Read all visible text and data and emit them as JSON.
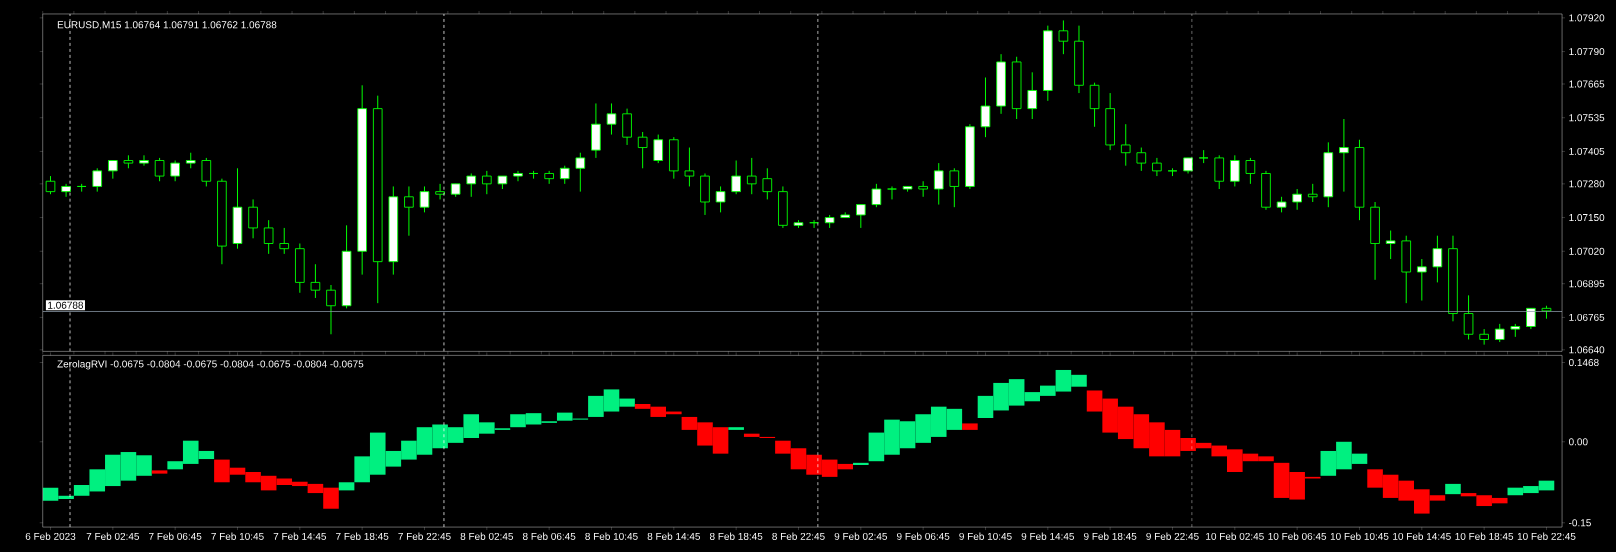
{
  "chart_data": [
    {
      "type": "candlestick",
      "title": "EURUSD,M15  1.06764 1.06791 1.06762 1.06788",
      "color": "#00ff00",
      "x": [
        "2023-02-06T22:45",
        "2023-02-06T23:45",
        "2023-02-07T00:45",
        "2023-02-07T01:45",
        "2023-02-07T02:45",
        "2023-02-07T03:45",
        "2023-02-07T04:45",
        "2023-02-07T05:45",
        "2023-02-07T06:45",
        "2023-02-07T07:45",
        "2023-02-07T08:45",
        "2023-02-07T09:45",
        "2023-02-07T10:45",
        "2023-02-07T11:45",
        "2023-02-07T12:45",
        "2023-02-07T13:45",
        "2023-02-07T14:45",
        "2023-02-07T15:45",
        "2023-02-07T16:45",
        "2023-02-07T17:45",
        "2023-02-07T18:45",
        "2023-02-07T19:45",
        "2023-02-07T20:45",
        "2023-02-07T21:45",
        "2023-02-07T22:45",
        "2023-02-07T23:45",
        "2023-02-08T00:45",
        "2023-02-08T01:45",
        "2023-02-08T02:45",
        "2023-02-08T03:45",
        "2023-02-08T04:45",
        "2023-02-08T05:45",
        "2023-02-08T06:45",
        "2023-02-08T07:45",
        "2023-02-08T08:45",
        "2023-02-08T09:45",
        "2023-02-08T10:45",
        "2023-02-08T11:45",
        "2023-02-08T12:45",
        "2023-02-08T13:45",
        "2023-02-08T14:45",
        "2023-02-08T15:45",
        "2023-02-08T16:45",
        "2023-02-08T17:45",
        "2023-02-08T18:45",
        "2023-02-08T19:45",
        "2023-02-08T20:45",
        "2023-02-08T21:45",
        "2023-02-08T22:45",
        "2023-02-08T23:45",
        "2023-02-09T00:45",
        "2023-02-09T01:45",
        "2023-02-09T02:45",
        "2023-02-09T03:45",
        "2023-02-09T04:45",
        "2023-02-09T05:45",
        "2023-02-09T06:45",
        "2023-02-09T07:45",
        "2023-02-09T08:45",
        "2023-02-09T09:45",
        "2023-02-09T10:45",
        "2023-02-09T11:45",
        "2023-02-09T12:45",
        "2023-02-09T13:45",
        "2023-02-09T14:45",
        "2023-02-09T15:45",
        "2023-02-09T16:45",
        "2023-02-09T17:45",
        "2023-02-09T18:45",
        "2023-02-09T19:45",
        "2023-02-09T20:45",
        "2023-02-09T21:45",
        "2023-02-09T22:45",
        "2023-02-09T23:45",
        "2023-02-10T00:45",
        "2023-02-10T01:45",
        "2023-02-10T02:45",
        "2023-02-10T03:45",
        "2023-02-10T04:45",
        "2023-02-10T05:45",
        "2023-02-10T06:45",
        "2023-02-10T07:45",
        "2023-02-10T08:45",
        "2023-02-10T09:45",
        "2023-02-10T10:45",
        "2023-02-10T11:45",
        "2023-02-10T12:45",
        "2023-02-10T13:45",
        "2023-02-10T14:45",
        "2023-02-10T15:45",
        "2023-02-10T16:45",
        "2023-02-10T17:45",
        "2023-02-10T18:45",
        "2023-02-10T19:45",
        "2023-02-10T20:45",
        "2023-02-10T21:45",
        "2023-02-10T22:45"
      ],
      "ohlc": [
        [
          1.0729,
          1.0731,
          1.0724,
          1.0725
        ],
        [
          1.0725,
          1.0728,
          1.0723,
          1.0727
        ],
        [
          1.0727,
          1.0728,
          1.0725,
          1.0727
        ],
        [
          1.0727,
          1.0734,
          1.0725,
          1.0733
        ],
        [
          1.0733,
          1.0737,
          1.073,
          1.0737
        ],
        [
          1.0737,
          1.0739,
          1.0734,
          1.0736
        ],
        [
          1.0736,
          1.0739,
          1.0735,
          1.0737
        ],
        [
          1.0737,
          1.0738,
          1.0729,
          1.0731
        ],
        [
          1.0731,
          1.0737,
          1.0729,
          1.0736
        ],
        [
          1.0736,
          1.074,
          1.0734,
          1.0737
        ],
        [
          1.0737,
          1.0738,
          1.0727,
          1.0729
        ],
        [
          1.0729,
          1.073,
          1.0697,
          1.0704
        ],
        [
          1.0705,
          1.0734,
          1.0703,
          1.0719
        ],
        [
          1.0719,
          1.0722,
          1.0707,
          1.0711
        ],
        [
          1.0711,
          1.0714,
          1.0701,
          1.0705
        ],
        [
          1.0705,
          1.0711,
          1.0701,
          1.0703
        ],
        [
          1.0703,
          1.0705,
          1.0686,
          1.069
        ],
        [
          1.069,
          1.0697,
          1.0684,
          1.0687
        ],
        [
          1.0687,
          1.0689,
          1.067,
          1.0681
        ],
        [
          1.0681,
          1.0712,
          1.068,
          1.0702
        ],
        [
          1.0702,
          1.0766,
          1.0693,
          1.0757
        ],
        [
          1.0757,
          1.0762,
          1.0682,
          1.0698
        ],
        [
          1.0698,
          1.0727,
          1.0693,
          1.0723
        ],
        [
          1.0723,
          1.0727,
          1.0708,
          1.0719
        ],
        [
          1.0719,
          1.0727,
          1.0717,
          1.0725
        ],
        [
          1.0725,
          1.0728,
          1.0722,
          1.0724
        ],
        [
          1.0724,
          1.0728,
          1.0723,
          1.0728
        ],
        [
          1.0728,
          1.0732,
          1.0723,
          1.0731
        ],
        [
          1.0731,
          1.0733,
          1.0724,
          1.0728
        ],
        [
          1.0728,
          1.0731,
          1.0726,
          1.0731
        ],
        [
          1.0731,
          1.0733,
          1.0729,
          1.0732
        ],
        [
          1.0732,
          1.0733,
          1.073,
          1.0732
        ],
        [
          1.0732,
          1.0733,
          1.0728,
          1.073
        ],
        [
          1.073,
          1.0735,
          1.0728,
          1.0734
        ],
        [
          1.0734,
          1.074,
          1.0725,
          1.0738
        ],
        [
          1.0741,
          1.0759,
          1.0738,
          1.0751
        ],
        [
          1.0751,
          1.0759,
          1.0747,
          1.0755
        ],
        [
          1.0755,
          1.0757,
          1.0743,
          1.0746
        ],
        [
          1.0746,
          1.0748,
          1.0734,
          1.0742
        ],
        [
          1.0737,
          1.0747,
          1.0736,
          1.0745
        ],
        [
          1.0745,
          1.0746,
          1.073,
          1.0733
        ],
        [
          1.0733,
          1.0742,
          1.0727,
          1.0731
        ],
        [
          1.0731,
          1.0732,
          1.0716,
          1.0721
        ],
        [
          1.0721,
          1.0727,
          1.0717,
          1.0725
        ],
        [
          1.0725,
          1.0737,
          1.0724,
          1.0731
        ],
        [
          1.0731,
          1.0738,
          1.0724,
          1.0728
        ],
        [
          1.073,
          1.0734,
          1.0722,
          1.0725
        ],
        [
          1.0725,
          1.0727,
          1.0711,
          1.0712
        ],
        [
          1.0712,
          1.0714,
          1.0711,
          1.0713
        ],
        [
          1.0713,
          1.0714,
          1.0711,
          1.0713
        ],
        [
          1.0713,
          1.0716,
          1.0711,
          1.0715
        ],
        [
          1.0715,
          1.0717,
          1.0715,
          1.0716
        ],
        [
          1.0716,
          1.072,
          1.0711,
          1.072
        ],
        [
          1.072,
          1.0728,
          1.0719,
          1.0726
        ],
        [
          1.0726,
          1.0727,
          1.0722,
          1.0726
        ],
        [
          1.0726,
          1.0727,
          1.0725,
          1.0727
        ],
        [
          1.0727,
          1.0729,
          1.0723,
          1.0726
        ],
        [
          1.0726,
          1.0736,
          1.072,
          1.0733
        ],
        [
          1.0733,
          1.0734,
          1.0719,
          1.0727
        ],
        [
          1.0727,
          1.0751,
          1.0726,
          1.075
        ],
        [
          1.075,
          1.0769,
          1.0746,
          1.0758
        ],
        [
          1.0758,
          1.0778,
          1.0755,
          1.0775
        ],
        [
          1.0775,
          1.0777,
          1.0753,
          1.0757
        ],
        [
          1.0757,
          1.0771,
          1.0753,
          1.0764
        ],
        [
          1.0764,
          1.0789,
          1.076,
          1.0787
        ],
        [
          1.0787,
          1.0791,
          1.0778,
          1.0783
        ],
        [
          1.0783,
          1.0789,
          1.0763,
          1.0766
        ],
        [
          1.0766,
          1.0767,
          1.075,
          1.0757
        ],
        [
          1.0757,
          1.0763,
          1.0741,
          1.0743
        ],
        [
          1.0743,
          1.0751,
          1.0735,
          1.074
        ],
        [
          1.074,
          1.0742,
          1.0733,
          1.0736
        ],
        [
          1.0736,
          1.0738,
          1.0731,
          1.0733
        ],
        [
          1.0733,
          1.0734,
          1.0731,
          1.0733
        ],
        [
          1.0733,
          1.0738,
          1.0732,
          1.0738
        ],
        [
          1.0738,
          1.0741,
          1.0736,
          1.0738
        ],
        [
          1.0738,
          1.0739,
          1.0726,
          1.0729
        ],
        [
          1.0729,
          1.0739,
          1.0727,
          1.0737
        ],
        [
          1.0737,
          1.0738,
          1.0728,
          1.0732
        ],
        [
          1.0732,
          1.0733,
          1.0718,
          1.0719
        ],
        [
          1.0719,
          1.0723,
          1.0717,
          1.0721
        ],
        [
          1.0721,
          1.0726,
          1.0718,
          1.0724
        ],
        [
          1.0724,
          1.0728,
          1.0721,
          1.0723
        ],
        [
          1.0723,
          1.0744,
          1.0719,
          1.074
        ],
        [
          1.074,
          1.0753,
          1.0725,
          1.0742
        ],
        [
          1.0742,
          1.0745,
          1.0714,
          1.0719
        ],
        [
          1.0719,
          1.0721,
          1.0691,
          1.0705
        ],
        [
          1.0705,
          1.071,
          1.0699,
          1.0706
        ],
        [
          1.0706,
          1.0708,
          1.0682,
          1.0694
        ],
        [
          1.0694,
          1.0699,
          1.0683,
          1.0696
        ],
        [
          1.0696,
          1.0708,
          1.069,
          1.0703
        ],
        [
          1.0703,
          1.0708,
          1.0675,
          1.0678
        ],
        [
          1.0678,
          1.0685,
          1.0668,
          1.067
        ],
        [
          1.067,
          1.0672,
          1.0666,
          1.0668
        ],
        [
          1.0668,
          1.0674,
          1.0667,
          1.0672
        ],
        [
          1.0672,
          1.0674,
          1.0669,
          1.0673
        ],
        [
          1.0673,
          1.068,
          1.0672,
          1.068
        ],
        [
          1.068,
          1.0681,
          1.0676,
          1.0679
        ]
      ],
      "xlim": [
        "2023-02-06T22:15",
        "2023-02-10T23:45"
      ],
      "ylim": [
        1.06634,
        1.07935
      ],
      "yticks": [
        {
          "value": 1.0792,
          "label": "1.07920"
        },
        {
          "value": 1.0779,
          "label": "1.07790"
        },
        1.07665,
        1.07535,
        1.07405,
        {
          "value": 1.0728,
          "label": "1.07280"
        },
        {
          "value": 1.0715,
          "label": "1.07150"
        },
        {
          "value": 1.0702,
          "label": "1.07020"
        },
        1.06895,
        1.06765,
        {
          "value": 1.0664,
          "label": "1.06640"
        }
      ],
      "tick_labels": "y",
      "ref_lines": [
        {
          "axis": "y",
          "value": 1.06788,
          "label": "1.06788",
          "color": "#8c9ba8",
          "line_style": "solid"
        },
        {
          "axis": "x",
          "value": "2023-02-07T00:00",
          "label": null,
          "color": "#ffffff",
          "line_style": "dashed"
        },
        {
          "axis": "x",
          "value": "2023-02-08T00:00",
          "label": null,
          "color": "#ffffff",
          "line_style": "dashed"
        },
        {
          "axis": "x",
          "value": "2023-02-09T00:00",
          "label": null,
          "color": "#ffffff",
          "line_style": "dashed"
        },
        {
          "axis": "x",
          "value": "2023-02-10T00:00",
          "label": null,
          "color": "#ffffff",
          "line_style": "dashed"
        }
      ]
    },
    {
      "type": "bar",
      "title": "ZerolagRVI -0.0675 -0.0804 -0.0675 -0.0804 -0.0675 -0.0804 -0.0675",
      "x": [
        "2023-02-06T22:45",
        "2023-02-06T23:45",
        "2023-02-07T00:45",
        "2023-02-07T01:45",
        "2023-02-07T02:45",
        "2023-02-07T03:45",
        "2023-02-07T04:45",
        "2023-02-07T05:45",
        "2023-02-07T06:45",
        "2023-02-07T07:45",
        "2023-02-07T08:45",
        "2023-02-07T09:45",
        "2023-02-07T10:45",
        "2023-02-07T11:45",
        "2023-02-07T12:45",
        "2023-02-07T13:45",
        "2023-02-07T14:45",
        "2023-02-07T15:45",
        "2023-02-07T16:45",
        "2023-02-07T17:45",
        "2023-02-07T18:45",
        "2023-02-07T19:45",
        "2023-02-07T20:45",
        "2023-02-07T21:45",
        "2023-02-07T22:45",
        "2023-02-07T23:45",
        "2023-02-08T00:45",
        "2023-02-08T01:45",
        "2023-02-08T02:45",
        "2023-02-08T03:45",
        "2023-02-08T04:45",
        "2023-02-08T05:45",
        "2023-02-08T06:45",
        "2023-02-08T07:45",
        "2023-02-08T08:45",
        "2023-02-08T09:45",
        "2023-02-08T10:45",
        "2023-02-08T11:45",
        "2023-02-08T12:45",
        "2023-02-08T13:45",
        "2023-02-08T14:45",
        "2023-02-08T15:45",
        "2023-02-08T16:45",
        "2023-02-08T17:45",
        "2023-02-08T18:45",
        "2023-02-08T19:45",
        "2023-02-08T20:45",
        "2023-02-08T21:45",
        "2023-02-08T22:45",
        "2023-02-08T23:45",
        "2023-02-09T00:45",
        "2023-02-09T01:45",
        "2023-02-09T02:45",
        "2023-02-09T03:45",
        "2023-02-09T04:45",
        "2023-02-09T05:45",
        "2023-02-09T06:45",
        "2023-02-09T07:45",
        "2023-02-09T08:45",
        "2023-02-09T09:45",
        "2023-02-09T10:45",
        "2023-02-09T11:45",
        "2023-02-09T12:45",
        "2023-02-09T13:45",
        "2023-02-09T14:45",
        "2023-02-09T15:45",
        "2023-02-09T16:45",
        "2023-02-09T17:45",
        "2023-02-09T18:45",
        "2023-02-09T19:45",
        "2023-02-09T20:45",
        "2023-02-09T21:45",
        "2023-02-09T22:45",
        "2023-02-09T23:45",
        "2023-02-10T00:45",
        "2023-02-10T01:45",
        "2023-02-10T02:45",
        "2023-02-10T03:45",
        "2023-02-10T04:45",
        "2023-02-10T05:45",
        "2023-02-10T06:45",
        "2023-02-10T07:45",
        "2023-02-10T08:45",
        "2023-02-10T09:45",
        "2023-02-10T10:45",
        "2023-02-10T11:45",
        "2023-02-10T12:45",
        "2023-02-10T13:45",
        "2023-02-10T14:45",
        "2023-02-10T15:45",
        "2023-02-10T16:45",
        "2023-02-10T17:45",
        "2023-02-10T18:45",
        "2023-02-10T19:45",
        "2023-02-10T20:45",
        "2023-02-10T21:45",
        "2023-02-10T22:45"
      ],
      "base": [
        -0.109,
        -0.106,
        -0.1,
        -0.092,
        -0.082,
        -0.072,
        -0.063,
        -0.053,
        -0.051,
        -0.041,
        -0.032,
        -0.033,
        -0.048,
        -0.056,
        -0.063,
        -0.068,
        -0.074,
        -0.078,
        -0.085,
        -0.09,
        -0.075,
        -0.061,
        -0.046,
        -0.033,
        -0.024,
        -0.012,
        -0.002,
        0.007,
        0.015,
        0.022,
        0.027,
        0.032,
        0.035,
        0.039,
        0.041,
        0.046,
        0.056,
        0.065,
        0.07,
        0.065,
        0.056,
        0.046,
        0.036,
        0.027,
        0.022,
        0.015,
        0.009,
        0.002,
        -0.012,
        -0.024,
        -0.033,
        -0.041,
        -0.043,
        -0.036,
        -0.024,
        -0.012,
        -0.002,
        0.009,
        0.022,
        0.034,
        0.044,
        0.058,
        0.067,
        0.075,
        0.085,
        0.093,
        0.102,
        0.095,
        0.08,
        0.065,
        0.051,
        0.036,
        0.022,
        0.007,
        -0.002,
        -0.007,
        -0.014,
        -0.022,
        -0.027,
        -0.039,
        -0.056,
        -0.065,
        -0.063,
        -0.051,
        -0.041,
        -0.051,
        -0.061,
        -0.072,
        -0.088,
        -0.099,
        -0.097,
        -0.095,
        -0.099,
        -0.104,
        -0.099,
        -0.095,
        -0.09
      ],
      "values": [
        0.024,
        0.006,
        0.02,
        0.041,
        0.058,
        0.053,
        0.038,
        -0.006,
        0.015,
        0.043,
        0.015,
        -0.042,
        -0.013,
        -0.019,
        -0.027,
        -0.012,
        -0.008,
        -0.017,
        -0.039,
        0.015,
        0.048,
        0.078,
        0.029,
        0.035,
        0.051,
        0.044,
        0.029,
        0.044,
        0.021,
        0.003,
        0.024,
        0.021,
        0.003,
        0.015,
        0.002,
        0.039,
        0.041,
        0.015,
        -0.009,
        -0.019,
        -0.005,
        -0.024,
        -0.043,
        -0.049,
        0.005,
        -0.006,
        -0.002,
        -0.024,
        -0.039,
        -0.037,
        -0.032,
        -0.01,
        0.004,
        0.053,
        0.065,
        0.05,
        0.053,
        0.056,
        0.039,
        -0.012,
        0.041,
        0.051,
        0.049,
        0.017,
        0.019,
        0.04,
        0.022,
        -0.039,
        -0.063,
        -0.06,
        -0.063,
        -0.063,
        -0.049,
        -0.024,
        -0.01,
        -0.02,
        -0.042,
        -0.014,
        -0.009,
        -0.065,
        -0.051,
        -0.003,
        0.046,
        0.051,
        0.019,
        -0.034,
        -0.043,
        -0.037,
        -0.045,
        -0.01,
        0.019,
        -0.006,
        -0.02,
        -0.01,
        0.014,
        0.013,
        0.018
      ],
      "colors": [
        "#00f080",
        "#00f080",
        "#00f080",
        "#00f080",
        "#00f080",
        "#00f080",
        "#00f080",
        "#ff0000",
        "#00f080",
        "#00f080",
        "#00f080",
        "#ff0000",
        "#ff0000",
        "#ff0000",
        "#ff0000",
        "#ff0000",
        "#ff0000",
        "#ff0000",
        "#ff0000",
        "#00f080",
        "#00f080",
        "#00f080",
        "#00f080",
        "#00f080",
        "#00f080",
        "#00f080",
        "#00f080",
        "#00f080",
        "#00f080",
        "#00f080",
        "#00f080",
        "#00f080",
        "#00f080",
        "#00f080",
        "#00f080",
        "#00f080",
        "#00f080",
        "#00f080",
        "#ff0000",
        "#ff0000",
        "#ff0000",
        "#ff0000",
        "#ff0000",
        "#ff0000",
        "#00f080",
        "#ff0000",
        "#ff0000",
        "#ff0000",
        "#ff0000",
        "#ff0000",
        "#ff0000",
        "#ff0000",
        "#00f080",
        "#00f080",
        "#00f080",
        "#00f080",
        "#00f080",
        "#00f080",
        "#00f080",
        "#ff0000",
        "#00f080",
        "#00f080",
        "#00f080",
        "#00f080",
        "#00f080",
        "#00f080",
        "#00f080",
        "#ff0000",
        "#ff0000",
        "#ff0000",
        "#ff0000",
        "#ff0000",
        "#ff0000",
        "#ff0000",
        "#ff0000",
        "#ff0000",
        "#ff0000",
        "#ff0000",
        "#ff0000",
        "#ff0000",
        "#ff0000",
        "#ff0000",
        "#00f080",
        "#00f080",
        "#00f080",
        "#ff0000",
        "#ff0000",
        "#ff0000",
        "#ff0000",
        "#ff0000",
        "#00f080",
        "#ff0000",
        "#ff0000",
        "#ff0000",
        "#00f080",
        "#00f080",
        "#00f080"
      ],
      "xlim": [
        "2023-02-06T22:15",
        "2023-02-10T23:45"
      ],
      "xticks": [
        {
          "value": "2023-02-06T22:45",
          "label": "6 Feb 2023"
        },
        {
          "value": "2023-02-07T02:45",
          "label": "7 Feb 02:45"
        },
        {
          "value": "2023-02-07T06:45",
          "label": "7 Feb 06:45"
        },
        {
          "value": "2023-02-07T10:45",
          "label": "7 Feb 10:45"
        },
        {
          "value": "2023-02-07T14:45",
          "label": "7 Feb 14:45"
        },
        {
          "value": "2023-02-07T18:45",
          "label": "7 Feb 18:45"
        },
        {
          "value": "2023-02-07T22:45",
          "label": "7 Feb 22:45"
        },
        {
          "value": "2023-02-08T02:45",
          "label": "8 Feb 02:45"
        },
        {
          "value": "2023-02-08T06:45",
          "label": "8 Feb 06:45"
        },
        {
          "value": "2023-02-08T10:45",
          "label": "8 Feb 10:45"
        },
        {
          "value": "2023-02-08T14:45",
          "label": "8 Feb 14:45"
        },
        {
          "value": "2023-02-08T18:45",
          "label": "8 Feb 18:45"
        },
        {
          "value": "2023-02-08T22:45",
          "label": "8 Feb 22:45"
        },
        {
          "value": "2023-02-09T02:45",
          "label": "9 Feb 02:45"
        },
        {
          "value": "2023-02-09T06:45",
          "label": "9 Feb 06:45"
        },
        {
          "value": "2023-02-09T10:45",
          "label": "9 Feb 10:45"
        },
        {
          "value": "2023-02-09T14:45",
          "label": "9 Feb 14:45"
        },
        {
          "value": "2023-02-09T18:45",
          "label": "9 Feb 18:45"
        },
        {
          "value": "2023-02-09T22:45",
          "label": "9 Feb 22:45"
        },
        {
          "value": "2023-02-10T02:45",
          "label": "10 Feb 02:45"
        },
        {
          "value": "2023-02-10T06:45",
          "label": "10 Feb 06:45"
        },
        {
          "value": "2023-02-10T10:45",
          "label": "10 Feb 10:45"
        },
        {
          "value": "2023-02-10T14:45",
          "label": "10 Feb 14:45"
        },
        {
          "value": "2023-02-10T18:45",
          "label": "10 Feb 18:45"
        },
        {
          "value": "2023-02-10T22:45",
          "label": "10 Feb 22:45"
        }
      ],
      "ylim": [
        -0.158,
        0.16
      ],
      "yticks": [
        0.1468,
        {
          "value": 0,
          "label": "0.00"
        },
        -0.15
      ],
      "ref_lines": [
        {
          "axis": "x",
          "value": "2023-02-07T00:00",
          "label": null,
          "color": "#ffffff",
          "line_style": "dashed"
        },
        {
          "axis": "x",
          "value": "2023-02-08T00:00",
          "label": null,
          "color": "#ffffff",
          "line_style": "dashed"
        },
        {
          "axis": "x",
          "value": "2023-02-09T00:00",
          "label": null,
          "color": "#ffffff",
          "line_style": "dashed"
        },
        {
          "axis": "x",
          "value": "2023-02-10T00:00",
          "label": null,
          "color": "#ffffff",
          "line_style": "dashed"
        }
      ]
    }
  ]
}
